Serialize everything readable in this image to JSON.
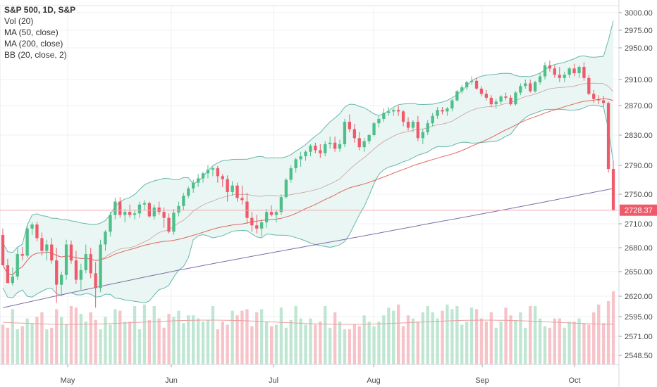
{
  "legend": {
    "symbol": "S&P 500, 1D, S&P",
    "volume": "Vol (20)",
    "ma50": "MA (50, close)",
    "ma200": "MA (200, close)",
    "bb": "BB (20, close, 2)"
  },
  "chart_data": {
    "type": "candlestick",
    "title": "S&P 500, 1D, S&P",
    "y_ticks": [
      "3000.00",
      "2975.00",
      "2950.00",
      "2910.00",
      "2870.00",
      "2830.00",
      "2790.00",
      "2750.00",
      "2710.00",
      "2680.00",
      "2650.00",
      "2620.00",
      "2595.00",
      "2571.00",
      "2548.50"
    ],
    "x_ticks": [
      "May",
      "Jun",
      "Jul",
      "Aug",
      "Sep",
      "Oct"
    ],
    "last_price": "2728.37",
    "colors": {
      "up": "#4fbf8a",
      "down": "#ef5a6a",
      "ma50": "#e0675f",
      "ma200": "#7d6fa8",
      "bb": "#68b8ab",
      "bb_fill": "#e9f6f3",
      "vol_up": "#bfe6d2",
      "vol_down": "#f6c3c8"
    },
    "bars": [
      [
        2696,
        2704,
        2688,
        2658
      ],
      [
        2658,
        2666,
        2653,
        2636
      ],
      [
        2636,
        2655,
        2633,
        2644
      ],
      [
        2644,
        2680,
        2640,
        2672
      ],
      [
        2672,
        2681,
        2664,
        2670
      ],
      [
        2670,
        2708,
        2667,
        2704
      ],
      [
        2704,
        2712,
        2696,
        2709
      ],
      [
        2709,
        2713,
        2688,
        2692
      ],
      [
        2692,
        2699,
        2670,
        2676
      ],
      [
        2676,
        2690,
        2664,
        2684
      ],
      [
        2684,
        2692,
        2660,
        2664
      ],
      [
        2664,
        2680,
        2612,
        2634
      ],
      [
        2634,
        2650,
        2620,
        2646
      ],
      [
        2646,
        2690,
        2640,
        2684
      ],
      [
        2684,
        2689,
        2660,
        2664
      ],
      [
        2664,
        2676,
        2635,
        2640
      ],
      [
        2640,
        2660,
        2628,
        2652
      ],
      [
        2652,
        2684,
        2648,
        2672
      ],
      [
        2672,
        2680,
        2642,
        2648
      ],
      [
        2648,
        2662,
        2606,
        2630
      ],
      [
        2630,
        2690,
        2625,
        2684
      ],
      [
        2684,
        2702,
        2676,
        2700
      ],
      [
        2700,
        2726,
        2694,
        2722
      ],
      [
        2722,
        2745,
        2716,
        2740
      ],
      [
        2740,
        2746,
        2718,
        2722
      ],
      [
        2722,
        2730,
        2712,
        2726
      ],
      [
        2726,
        2736,
        2718,
        2722
      ],
      [
        2722,
        2729,
        2716,
        2724
      ],
      [
        2724,
        2740,
        2718,
        2736
      ],
      [
        2736,
        2742,
        2728,
        2738
      ],
      [
        2738,
        2740,
        2718,
        2720
      ],
      [
        2720,
        2736,
        2716,
        2732
      ],
      [
        2732,
        2740,
        2722,
        2726
      ],
      [
        2726,
        2732,
        2705,
        2718
      ],
      [
        2718,
        2724,
        2698,
        2700
      ],
      [
        2700,
        2730,
        2696,
        2725
      ],
      [
        2725,
        2740,
        2720,
        2734
      ],
      [
        2734,
        2752,
        2728,
        2748
      ],
      [
        2748,
        2761,
        2745,
        2758
      ],
      [
        2758,
        2770,
        2752,
        2766
      ],
      [
        2766,
        2778,
        2760,
        2772
      ],
      [
        2772,
        2781,
        2766,
        2779
      ],
      [
        2779,
        2790,
        2772,
        2784
      ],
      [
        2784,
        2788,
        2775,
        2786
      ],
      [
        2786,
        2789,
        2766,
        2775
      ],
      [
        2775,
        2778,
        2760,
        2771
      ],
      [
        2771,
        2776,
        2740,
        2753
      ],
      [
        2753,
        2768,
        2748,
        2762
      ],
      [
        2762,
        2766,
        2740,
        2745
      ],
      [
        2745,
        2762,
        2736,
        2742
      ],
      [
        2740,
        2752,
        2710,
        2718
      ],
      [
        2718,
        2726,
        2700,
        2708
      ],
      [
        2708,
        2722,
        2698,
        2704
      ],
      [
        2704,
        2716,
        2694,
        2712
      ],
      [
        2712,
        2730,
        2705,
        2726
      ],
      [
        2726,
        2735,
        2720,
        2722
      ],
      [
        2722,
        2728,
        2712,
        2726
      ],
      [
        2726,
        2750,
        2722,
        2746
      ],
      [
        2746,
        2772,
        2744,
        2770
      ],
      [
        2770,
        2790,
        2766,
        2786
      ],
      [
        2786,
        2800,
        2780,
        2798
      ],
      [
        2798,
        2808,
        2788,
        2802
      ],
      [
        2802,
        2810,
        2796,
        2808
      ],
      [
        2808,
        2818,
        2802,
        2816
      ],
      [
        2816,
        2820,
        2806,
        2810
      ],
      [
        2810,
        2818,
        2800,
        2806
      ],
      [
        2806,
        2822,
        2802,
        2818
      ],
      [
        2818,
        2828,
        2812,
        2820
      ],
      [
        2820,
        2828,
        2808,
        2812
      ],
      [
        2812,
        2824,
        2808,
        2818
      ],
      [
        2818,
        2852,
        2814,
        2848
      ],
      [
        2848,
        2858,
        2834,
        2838
      ],
      [
        2838,
        2845,
        2820,
        2826
      ],
      [
        2826,
        2834,
        2810,
        2814
      ],
      [
        2814,
        2826,
        2808,
        2822
      ],
      [
        2822,
        2832,
        2818,
        2830
      ],
      [
        2830,
        2848,
        2828,
        2846
      ],
      [
        2846,
        2856,
        2840,
        2852
      ],
      [
        2852,
        2866,
        2848,
        2860
      ],
      [
        2860,
        2868,
        2856,
        2862
      ],
      [
        2862,
        2866,
        2856,
        2864
      ],
      [
        2864,
        2870,
        2856,
        2862
      ],
      [
        2862,
        2864,
        2842,
        2848
      ],
      [
        2848,
        2854,
        2836,
        2840
      ],
      [
        2840,
        2850,
        2834,
        2848
      ],
      [
        2848,
        2856,
        2822,
        2826
      ],
      [
        2826,
        2838,
        2818,
        2834
      ],
      [
        2834,
        2850,
        2830,
        2846
      ],
      [
        2846,
        2860,
        2842,
        2856
      ],
      [
        2856,
        2868,
        2852,
        2864
      ],
      [
        2864,
        2868,
        2858,
        2862
      ],
      [
        2862,
        2868,
        2856,
        2866
      ],
      [
        2866,
        2880,
        2862,
        2878
      ],
      [
        2878,
        2894,
        2876,
        2892
      ],
      [
        2892,
        2902,
        2888,
        2898
      ],
      [
        2898,
        2908,
        2894,
        2906
      ],
      [
        2906,
        2914,
        2902,
        2908
      ],
      [
        2908,
        2912,
        2894,
        2896
      ],
      [
        2896,
        2900,
        2884,
        2888
      ],
      [
        2888,
        2894,
        2878,
        2882
      ],
      [
        2882,
        2886,
        2868,
        2872
      ],
      [
        2872,
        2880,
        2866,
        2876
      ],
      [
        2876,
        2886,
        2872,
        2884
      ],
      [
        2884,
        2890,
        2878,
        2882
      ],
      [
        2882,
        2886,
        2870,
        2872
      ],
      [
        2872,
        2892,
        2870,
        2890
      ],
      [
        2890,
        2904,
        2886,
        2900
      ],
      [
        2900,
        2910,
        2896,
        2904
      ],
      [
        2904,
        2910,
        2890,
        2892
      ],
      [
        2892,
        2908,
        2890,
        2906
      ],
      [
        2906,
        2918,
        2902,
        2914
      ],
      [
        2914,
        2932,
        2910,
        2928
      ],
      [
        2928,
        2934,
        2920,
        2924
      ],
      [
        2924,
        2928,
        2912,
        2916
      ],
      [
        2916,
        2926,
        2906,
        2912
      ],
      [
        2912,
        2920,
        2906,
        2916
      ],
      [
        2916,
        2926,
        2912,
        2924
      ],
      [
        2924,
        2930,
        2914,
        2918
      ],
      [
        2918,
        2928,
        2912,
        2926
      ],
      [
        2926,
        2932,
        2908,
        2912
      ],
      [
        2912,
        2916,
        2886,
        2888
      ],
      [
        2888,
        2894,
        2874,
        2880
      ],
      [
        2880,
        2886,
        2872,
        2878
      ],
      [
        2878,
        2885,
        2868,
        2874
      ],
      [
        2874,
        2876,
        2780,
        2785
      ],
      [
        2785,
        2796,
        2728,
        2728
      ]
    ]
  }
}
